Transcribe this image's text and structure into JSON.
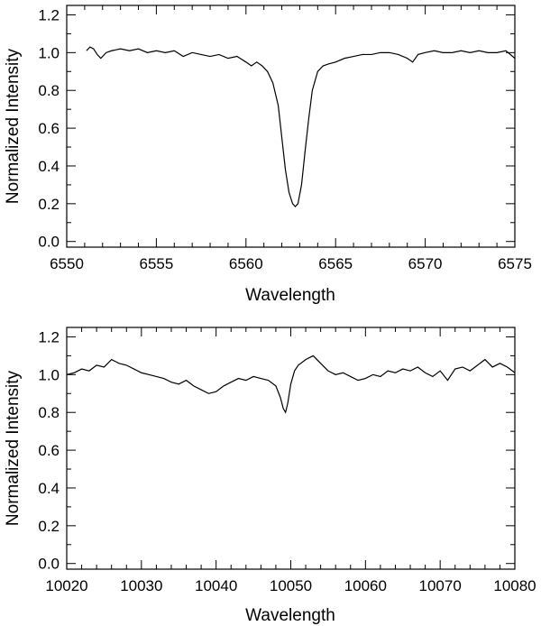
{
  "chart_data": [
    {
      "type": "line",
      "xlabel": "Wavelength",
      "ylabel": "Normalized Intensity",
      "xlim": [
        6550,
        6575
      ],
      "ylim": [
        -0.03,
        1.25
      ],
      "xticks": [
        "6550",
        "6555",
        "6560",
        "6565",
        "6570",
        "6575"
      ],
      "yticks": [
        "0.0",
        "0.2",
        "0.4",
        "0.6",
        "0.8",
        "1.0",
        "1.2"
      ],
      "grid": false,
      "series": [
        {
          "x": [
            6551.1,
            6551.3,
            6551.5,
            6551.7,
            6551.9,
            6552.2,
            6552.5,
            6553.0,
            6553.5,
            6554.0,
            6554.5,
            6555.0,
            6555.5,
            6556.0,
            6556.5,
            6557.0,
            6557.5,
            6558.0,
            6558.5,
            6559.0,
            6559.5,
            6560.0,
            6560.3,
            6560.6,
            6560.9,
            6561.2,
            6561.5,
            6561.8,
            6562.0,
            6562.2,
            6562.4,
            6562.6,
            6562.75,
            6562.9,
            6563.1,
            6563.3,
            6563.5,
            6563.7,
            6564.0,
            6564.3,
            6564.6,
            6565.0,
            6565.5,
            6566.0,
            6566.5,
            6567.0,
            6567.5,
            6568.0,
            6568.5,
            6569.0,
            6569.3,
            6569.6,
            6570.0,
            6570.5,
            6571.0,
            6571.5,
            6572.0,
            6572.5,
            6573.0,
            6573.5,
            6574.0,
            6574.5,
            6575.0
          ],
          "y": [
            1.01,
            1.03,
            1.02,
            0.99,
            0.97,
            1.0,
            1.01,
            1.02,
            1.01,
            1.02,
            1.0,
            1.01,
            1.0,
            1.01,
            0.98,
            1.0,
            0.99,
            0.98,
            0.99,
            0.97,
            0.98,
            0.95,
            0.93,
            0.95,
            0.93,
            0.9,
            0.84,
            0.72,
            0.55,
            0.38,
            0.26,
            0.2,
            0.185,
            0.2,
            0.3,
            0.48,
            0.65,
            0.8,
            0.9,
            0.93,
            0.94,
            0.95,
            0.97,
            0.98,
            0.99,
            0.99,
            1.0,
            1.0,
            0.99,
            0.97,
            0.95,
            0.99,
            1.0,
            1.01,
            1.0,
            1.0,
            1.01,
            1.0,
            1.01,
            1.0,
            1.0,
            1.01,
            0.97
          ]
        }
      ]
    },
    {
      "type": "line",
      "xlabel": "Wavelength",
      "ylabel": "Normalized Intensity",
      "xlim": [
        10020,
        10080
      ],
      "ylim": [
        -0.03,
        1.25
      ],
      "xticks": [
        "10020",
        "10030",
        "10040",
        "10050",
        "10060",
        "10070",
        "10080"
      ],
      "yticks": [
        "0.0",
        "0.2",
        "0.4",
        "0.6",
        "0.8",
        "1.0",
        "1.2"
      ],
      "grid": false,
      "series": [
        {
          "x": [
            10020,
            10021,
            10022,
            10023,
            10024,
            10025,
            10026,
            10027,
            10028,
            10029,
            10030,
            10031,
            10032,
            10033,
            10034,
            10035,
            10036,
            10037,
            10038,
            10039,
            10040,
            10041,
            10042,
            10043,
            10044,
            10045,
            10046,
            10047,
            10048,
            10048.6,
            10049,
            10049.3,
            10049.6,
            10050,
            10050.5,
            10051,
            10052,
            10053,
            10054,
            10055,
            10056,
            10057,
            10058,
            10059,
            10060,
            10061,
            10062,
            10063,
            10064,
            10065,
            10066,
            10067,
            10068,
            10069,
            10070,
            10071,
            10072,
            10073,
            10074,
            10075,
            10076,
            10077,
            10078,
            10079,
            10080
          ],
          "y": [
            1.0,
            1.01,
            1.03,
            1.02,
            1.05,
            1.04,
            1.08,
            1.06,
            1.05,
            1.03,
            1.01,
            1.0,
            0.99,
            0.98,
            0.96,
            0.95,
            0.97,
            0.94,
            0.92,
            0.9,
            0.91,
            0.94,
            0.96,
            0.98,
            0.97,
            0.99,
            0.98,
            0.97,
            0.94,
            0.88,
            0.82,
            0.8,
            0.85,
            0.95,
            1.02,
            1.05,
            1.08,
            1.1,
            1.06,
            1.02,
            1.0,
            1.01,
            0.99,
            0.97,
            0.98,
            1.0,
            0.99,
            1.02,
            1.01,
            1.03,
            1.02,
            1.04,
            1.01,
            0.99,
            1.02,
            0.97,
            1.03,
            1.04,
            1.02,
            1.05,
            1.08,
            1.04,
            1.06,
            1.04,
            1.01
          ]
        }
      ]
    }
  ]
}
